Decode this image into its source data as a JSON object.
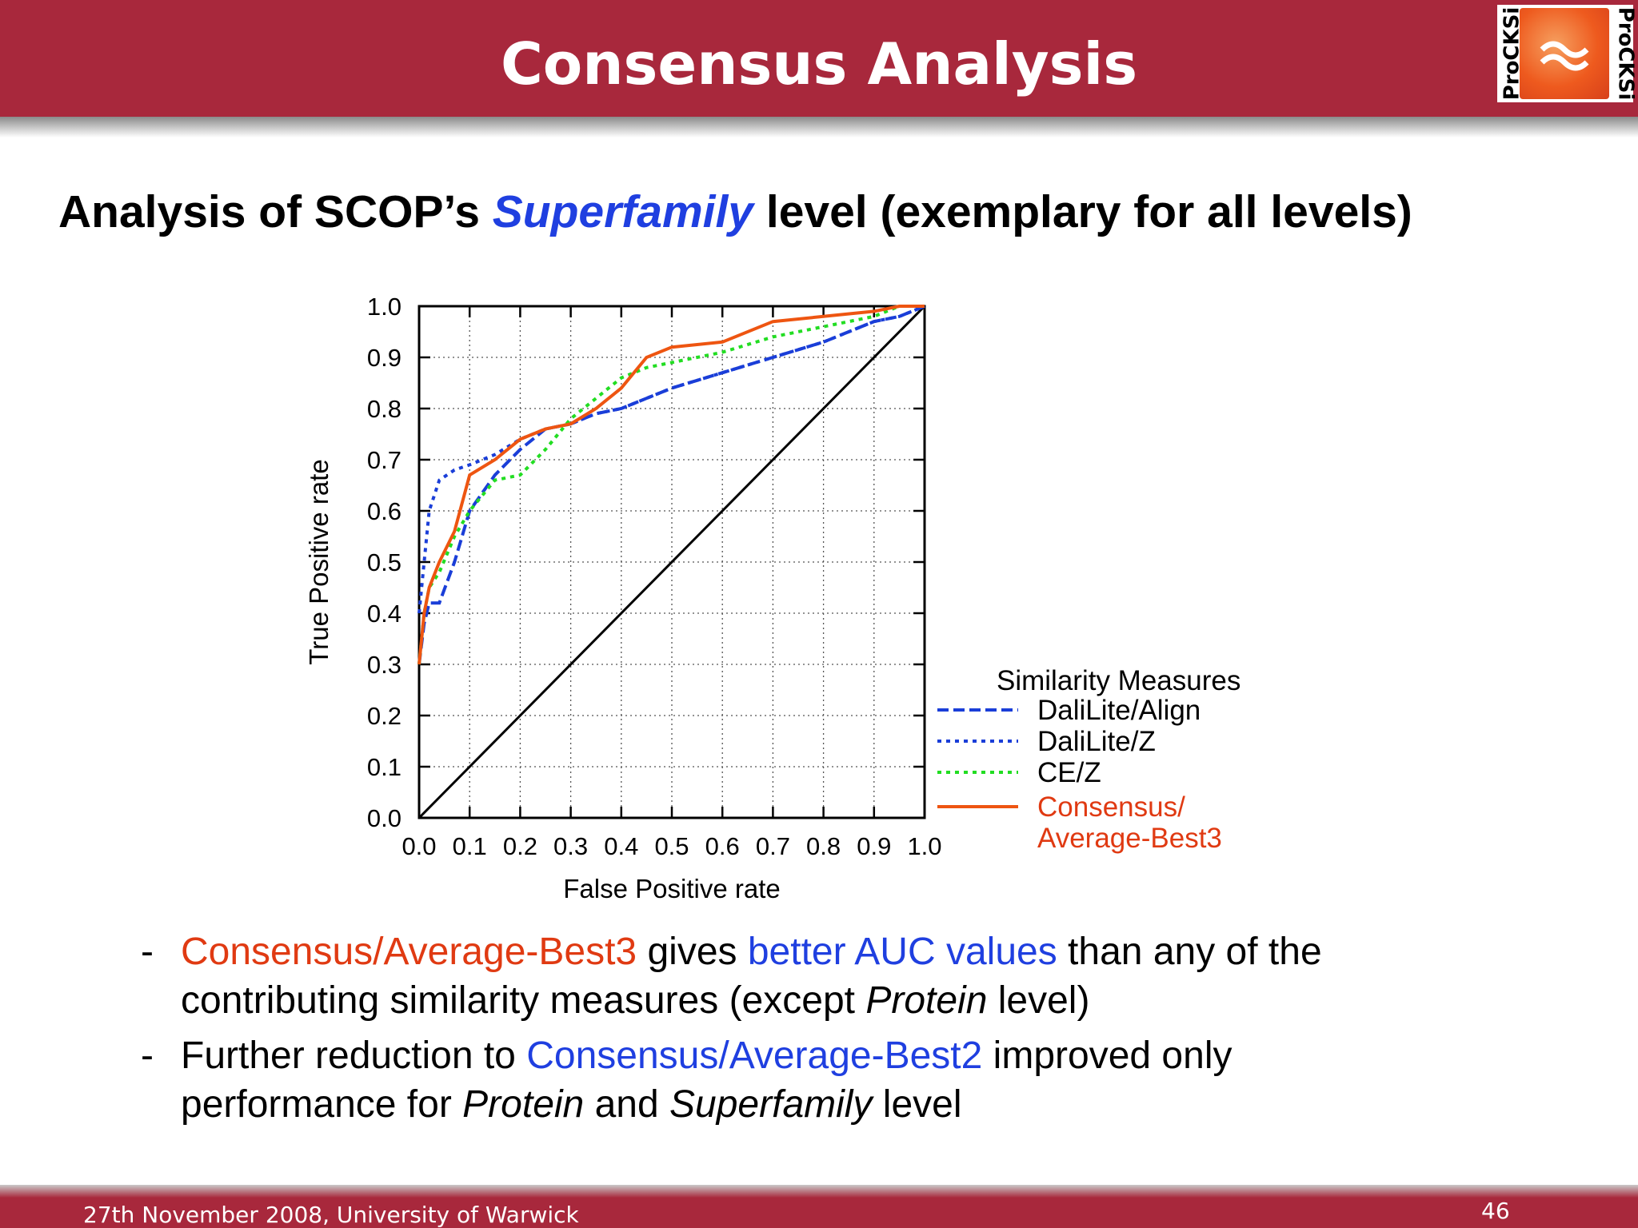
{
  "header": {
    "title": "Consensus Analysis",
    "logo_text": "ProCKSi"
  },
  "subtitle": {
    "runs": [
      {
        "text": "Analysis of SCOP’s ",
        "color": "#000000"
      },
      {
        "text": "Superfamily",
        "color": "#1f3fe0",
        "italic": true
      },
      {
        "text": " level (exemplary for all levels)",
        "color": "#000000"
      }
    ]
  },
  "chart_data": {
    "type": "line",
    "xlabel": "False Positive rate",
    "ylabel": "True Positive rate",
    "legend_title": "Similarity Measures",
    "grid": true,
    "xlim": [
      0,
      1
    ],
    "ylim": [
      0,
      1
    ],
    "xticks": [
      {
        "value": 0,
        "label": "0.0"
      },
      0.1,
      0.2,
      0.3,
      0.4,
      0.5,
      0.6,
      0.7,
      0.8,
      0.9,
      {
        "value": 1,
        "label": "1.0"
      }
    ],
    "yticks": [
      {
        "value": 0,
        "label": "0.0"
      },
      0.1,
      0.2,
      0.3,
      0.4,
      0.5,
      0.6,
      0.7,
      0.8,
      0.9,
      {
        "value": 1,
        "label": "1.0"
      }
    ],
    "x": [
      0,
      0.01,
      0.02,
      0.04,
      0.07,
      0.1,
      0.15,
      0.2,
      0.25,
      0.3,
      0.35,
      0.4,
      0.45,
      0.5,
      0.6,
      0.7,
      0.8,
      0.9,
      0.95,
      1
    ],
    "series": [
      {
        "name": "DaliLite/Align",
        "color": "#1a3ed8",
        "style": "dashed",
        "values": [
          0.3,
          0.38,
          0.42,
          0.42,
          0.5,
          0.6,
          0.67,
          0.72,
          0.76,
          0.77,
          0.79,
          0.8,
          0.82,
          0.84,
          0.87,
          0.9,
          0.93,
          0.97,
          0.98,
          1
        ]
      },
      {
        "name": "DaliLite/Z",
        "color": "#1a3ed8",
        "style": "dotted",
        "values": [
          0.4,
          0.5,
          0.6,
          0.66,
          0.68,
          0.69,
          0.71,
          0.74,
          0.76,
          0.77,
          0.79,
          0.8,
          0.82,
          0.84,
          0.87,
          0.9,
          0.93,
          0.97,
          0.98,
          1
        ]
      },
      {
        "name": "CE/Z",
        "color": "#22dd22",
        "style": "dotted",
        "values": [
          0.3,
          0.4,
          0.45,
          0.48,
          0.55,
          0.6,
          0.66,
          0.67,
          0.72,
          0.78,
          0.82,
          0.86,
          0.88,
          0.89,
          0.91,
          0.94,
          0.96,
          0.98,
          1,
          1
        ]
      },
      {
        "name": "Consensus/Average-Best3",
        "color": "#ee5511",
        "style": "solid",
        "values": [
          0.3,
          0.4,
          0.45,
          0.5,
          0.56,
          0.67,
          0.7,
          0.74,
          0.76,
          0.77,
          0.8,
          0.84,
          0.9,
          0.92,
          0.93,
          0.97,
          0.98,
          0.99,
          1,
          1
        ]
      }
    ]
  },
  "bullets": [
    {
      "marker": "-",
      "runs": [
        {
          "text": "Consensus/Average-Best3",
          "color": "#e03a12"
        },
        {
          "text": " gives ",
          "color": "#000000"
        },
        {
          "text": "better AUC values",
          "color": "#1f3fe0"
        },
        {
          "text": " than any of the contributing similarity measures (except ",
          "color": "#000000"
        },
        {
          "text": "Protein",
          "color": "#000000",
          "italic": true
        },
        {
          "text": " level)",
          "color": "#000000"
        }
      ]
    },
    {
      "marker": "-",
      "runs": [
        {
          "text": "Further reduction to ",
          "color": "#000000"
        },
        {
          "text": "Consensus/Average-Best2",
          "color": "#1f3fe0"
        },
        {
          "text": " improved only performance for ",
          "color": "#000000"
        },
        {
          "text": "Protein",
          "color": "#000000",
          "italic": true
        },
        {
          "text": " and ",
          "color": "#000000"
        },
        {
          "text": "Superfamily",
          "color": "#000000",
          "italic": true
        },
        {
          "text": " level",
          "color": "#000000"
        }
      ]
    }
  ],
  "footer": {
    "left": "27th November 2008, University of Warwick",
    "page": "46"
  }
}
